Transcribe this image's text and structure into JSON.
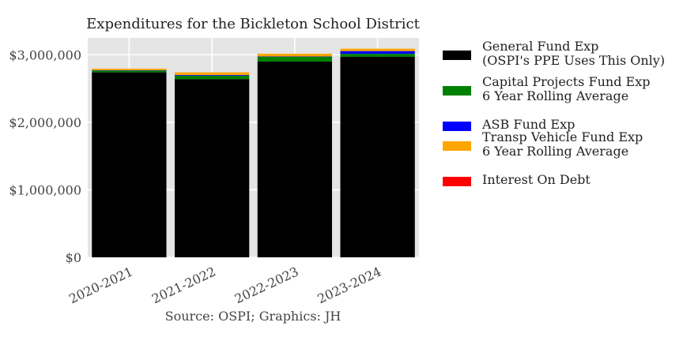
{
  "chart_data": {
    "type": "bar",
    "stacked": true,
    "title": "Expenditures for the Bickleton School District",
    "caption": "Source: OSPI; Graphics: JH",
    "categories": [
      "2020-2021",
      "2021-2022",
      "2022-2023",
      "2023-2024"
    ],
    "ylim": [
      0,
      3250000
    ],
    "yticks": [
      0,
      1000000,
      2000000,
      3000000
    ],
    "ytick_labels": [
      "$0",
      "$1,000,000",
      "$2,000,000",
      "$3,000,000"
    ],
    "grid": true,
    "legend_position": "right",
    "series": [
      {
        "name": "General Fund Exp\n(OSPI's PPE Uses This Only)",
        "color": "#000000",
        "values": [
          2740000,
          2640000,
          2900000,
          2970000
        ]
      },
      {
        "name": "Capital Projects Fund Exp\n6 Year Rolling Average",
        "color": "#008000",
        "values": [
          25000,
          50000,
          70000,
          45000
        ]
      },
      {
        "name": "ASB Fund Exp",
        "color": "#0000ff",
        "values": [
          5000,
          10000,
          5000,
          40000
        ]
      },
      {
        "name": "Transp Vehicle Fund Exp\n6 Year Rolling Average",
        "color": "#ffa500",
        "values": [
          25000,
          40000,
          40000,
          35000
        ]
      },
      {
        "name": "Interest On Debt",
        "color": "#ff0000",
        "values": [
          0,
          0,
          0,
          0
        ]
      }
    ]
  }
}
